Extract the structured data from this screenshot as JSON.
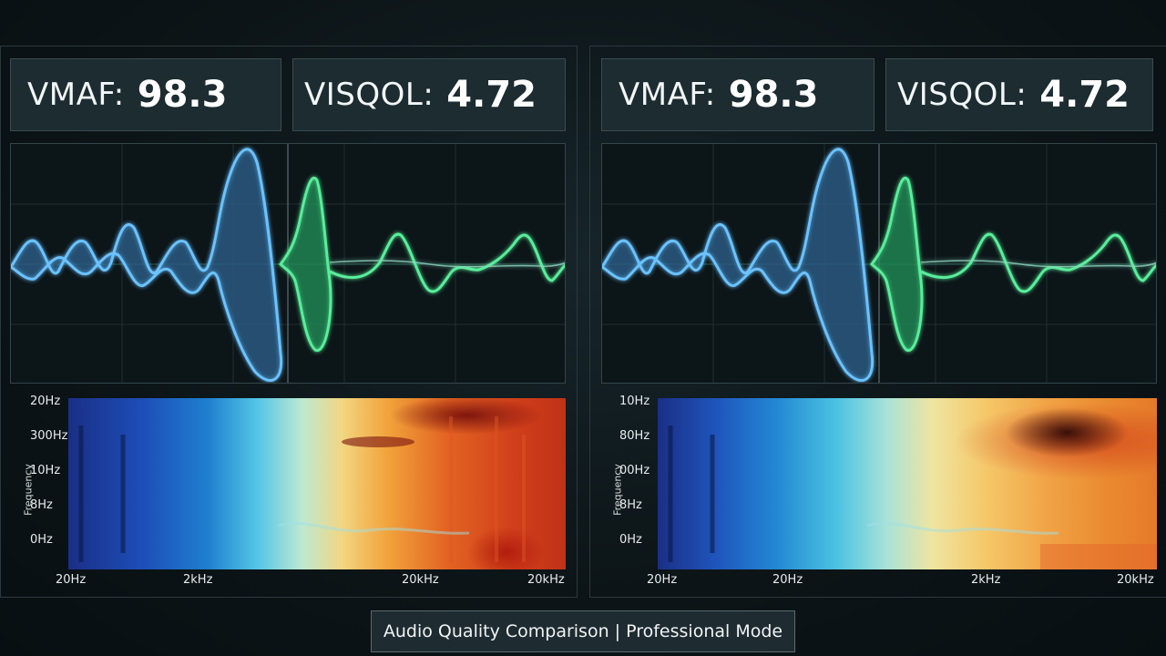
{
  "panels": [
    {
      "vmaf_label": "VMAF:",
      "vmaf_value": "98.3",
      "visqol_label": "VISQOL:",
      "visqol_value": "4.72",
      "spectrogram": {
        "y_title": "Frequency",
        "y_labels": [
          "20Hz",
          "300Hz",
          "10Hz",
          "8Hz",
          "0Hz"
        ],
        "x_labels": [
          "20Hz",
          "2kHz",
          "20kHz",
          "20kHz"
        ]
      }
    },
    {
      "vmaf_label": "VMAF:",
      "vmaf_value": "98.3",
      "visqol_label": "VISQOL:",
      "visqol_value": "4.72",
      "spectrogram": {
        "y_title": "Frequency",
        "y_labels": [
          "10Hz",
          "80Hz",
          "00Hz",
          "8Hz",
          "0Hz"
        ],
        "x_labels": [
          "20Hz",
          "20Hz",
          "2kHz",
          "20kHz"
        ]
      }
    }
  ],
  "footer": {
    "text": "Audio Quality Comparison | Professional Mode"
  },
  "colors": {
    "wave_blue": "#5fb6f5",
    "wave_green": "#4de08e",
    "background": "#0d1619"
  }
}
